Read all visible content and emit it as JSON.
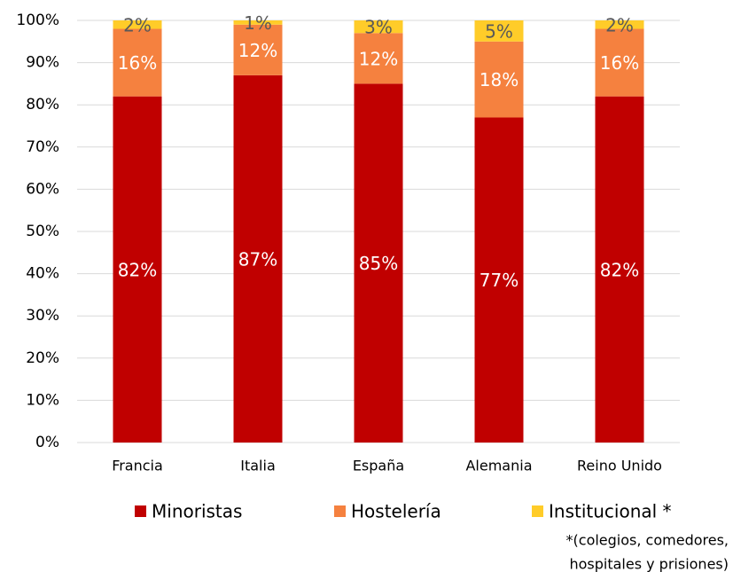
{
  "chart_data": {
    "type": "stacked_bar",
    "categories": [
      "Francia",
      "Italia",
      "España",
      "Alemania",
      "Reino Unido"
    ],
    "series": [
      {
        "name": "Minoristas",
        "color": "#c00000",
        "values": [
          82,
          87,
          85,
          77,
          82
        ],
        "value_labels": [
          "82%",
          "87%",
          "85%",
          "77%",
          "82%"
        ]
      },
      {
        "name": "Hostelería",
        "color": "#f5813f",
        "values": [
          16,
          12,
          12,
          18,
          16
        ],
        "value_labels": [
          "16%",
          "12%",
          "12%",
          "18%",
          "16%"
        ]
      },
      {
        "name": "Institucional *",
        "color": "#ffcc29",
        "values": [
          2,
          1,
          3,
          5,
          2
        ],
        "value_labels": [
          "2%",
          "1%",
          "3%",
          "5%",
          "2%"
        ]
      }
    ],
    "ylim": [
      0,
      100
    ],
    "yticks": [
      {
        "value": 0,
        "label": "0%"
      },
      {
        "value": 10,
        "label": "10%"
      },
      {
        "value": 20,
        "label": "20%"
      },
      {
        "value": 30,
        "label": "30%"
      },
      {
        "value": 40,
        "label": "40%"
      },
      {
        "value": 50,
        "label": "50%"
      },
      {
        "value": 60,
        "label": "60%"
      },
      {
        "value": 70,
        "label": "70%"
      },
      {
        "value": 80,
        "label": "80%"
      },
      {
        "value": 90,
        "label": "90%"
      },
      {
        "value": 100,
        "label": "100%"
      }
    ],
    "grid": true,
    "legend": "bottom",
    "annotations": [
      "*(colegios, comedores,",
      "hospitales y prisiones)"
    ]
  }
}
